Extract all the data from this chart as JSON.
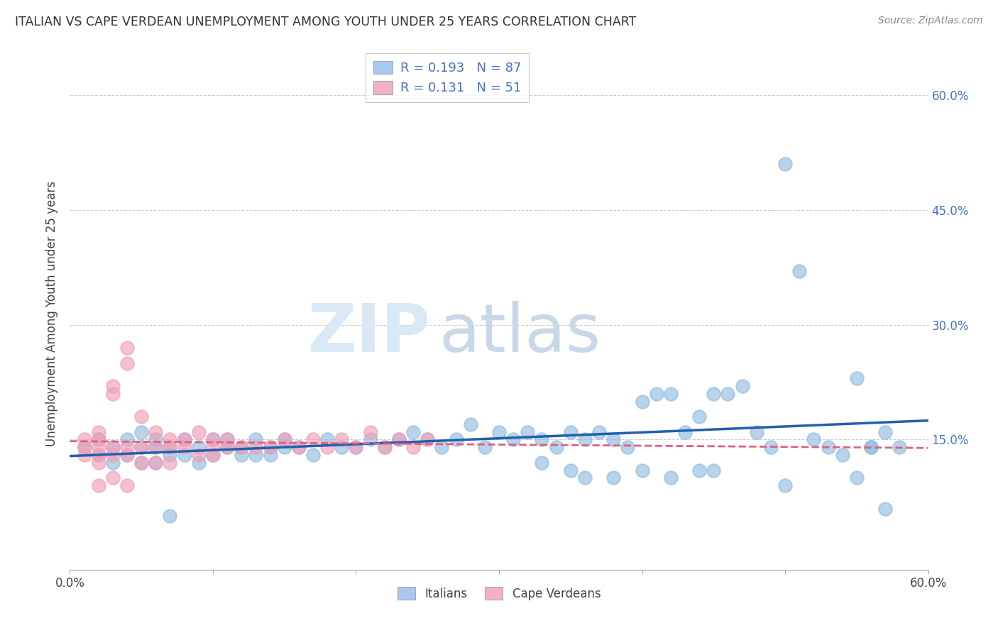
{
  "title": "ITALIAN VS CAPE VERDEAN UNEMPLOYMENT AMONG YOUTH UNDER 25 YEARS CORRELATION CHART",
  "source": "Source: ZipAtlas.com",
  "ylabel": "Unemployment Among Youth under 25 years",
  "y_tick_labels": [
    "",
    "15.0%",
    "30.0%",
    "45.0%",
    "60.0%"
  ],
  "x_range": [
    0.0,
    0.6
  ],
  "y_range": [
    -0.02,
    0.65
  ],
  "italians_color": "#92bce0",
  "cape_verdeans_color": "#f0a0b8",
  "line_italian_color": "#2060b0",
  "line_cape_color": "#e06080",
  "legend_blue_patch": "#a8c8f0",
  "legend_pink_patch": "#f4b0c4",
  "watermark_zip_color": "#d8e8f4",
  "watermark_atlas_color": "#c8d8e8",
  "italians_x": [
    0.01,
    0.02,
    0.02,
    0.03,
    0.03,
    0.04,
    0.04,
    0.05,
    0.05,
    0.06,
    0.06,
    0.07,
    0.07,
    0.08,
    0.08,
    0.09,
    0.09,
    0.1,
    0.1,
    0.11,
    0.11,
    0.12,
    0.12,
    0.13,
    0.13,
    0.14,
    0.14,
    0.15,
    0.15,
    0.16,
    0.17,
    0.18,
    0.19,
    0.2,
    0.21,
    0.22,
    0.23,
    0.24,
    0.25,
    0.26,
    0.27,
    0.28,
    0.29,
    0.3,
    0.31,
    0.32,
    0.33,
    0.34,
    0.35,
    0.36,
    0.37,
    0.38,
    0.39,
    0.4,
    0.41,
    0.42,
    0.43,
    0.44,
    0.45,
    0.46,
    0.47,
    0.48,
    0.49,
    0.5,
    0.51,
    0.52,
    0.53,
    0.54,
    0.55,
    0.56,
    0.57,
    0.58,
    0.38,
    0.4,
    0.42,
    0.44,
    0.55,
    0.5,
    0.33,
    0.35,
    0.36,
    0.45,
    0.56,
    0.57,
    0.05,
    0.06,
    0.07
  ],
  "italians_y": [
    0.14,
    0.13,
    0.15,
    0.12,
    0.14,
    0.13,
    0.15,
    0.12,
    0.14,
    0.14,
    0.15,
    0.13,
    0.14,
    0.13,
    0.15,
    0.12,
    0.14,
    0.13,
    0.15,
    0.14,
    0.15,
    0.13,
    0.14,
    0.13,
    0.15,
    0.13,
    0.14,
    0.15,
    0.14,
    0.14,
    0.13,
    0.15,
    0.14,
    0.14,
    0.15,
    0.14,
    0.15,
    0.16,
    0.15,
    0.14,
    0.15,
    0.17,
    0.14,
    0.16,
    0.15,
    0.16,
    0.15,
    0.14,
    0.16,
    0.15,
    0.16,
    0.15,
    0.14,
    0.2,
    0.21,
    0.21,
    0.16,
    0.18,
    0.21,
    0.21,
    0.22,
    0.16,
    0.14,
    0.51,
    0.37,
    0.15,
    0.14,
    0.13,
    0.23,
    0.14,
    0.16,
    0.14,
    0.1,
    0.11,
    0.1,
    0.11,
    0.1,
    0.09,
    0.12,
    0.11,
    0.1,
    0.11,
    0.14,
    0.06,
    0.16,
    0.12,
    0.05
  ],
  "cape_x": [
    0.01,
    0.01,
    0.01,
    0.02,
    0.02,
    0.02,
    0.02,
    0.02,
    0.03,
    0.03,
    0.03,
    0.03,
    0.04,
    0.04,
    0.04,
    0.04,
    0.05,
    0.05,
    0.05,
    0.06,
    0.06,
    0.06,
    0.07,
    0.07,
    0.07,
    0.08,
    0.08,
    0.09,
    0.09,
    0.1,
    0.1,
    0.1,
    0.11,
    0.11,
    0.12,
    0.13,
    0.14,
    0.15,
    0.16,
    0.17,
    0.18,
    0.19,
    0.2,
    0.21,
    0.22,
    0.23,
    0.24,
    0.25,
    0.02,
    0.03,
    0.04
  ],
  "cape_y": [
    0.13,
    0.14,
    0.15,
    0.12,
    0.13,
    0.14,
    0.15,
    0.16,
    0.13,
    0.14,
    0.21,
    0.22,
    0.13,
    0.14,
    0.25,
    0.27,
    0.12,
    0.14,
    0.18,
    0.12,
    0.14,
    0.16,
    0.12,
    0.14,
    0.15,
    0.14,
    0.15,
    0.13,
    0.16,
    0.13,
    0.14,
    0.15,
    0.14,
    0.15,
    0.14,
    0.14,
    0.14,
    0.15,
    0.14,
    0.15,
    0.14,
    0.15,
    0.14,
    0.16,
    0.14,
    0.15,
    0.14,
    0.15,
    0.09,
    0.1,
    0.09
  ]
}
